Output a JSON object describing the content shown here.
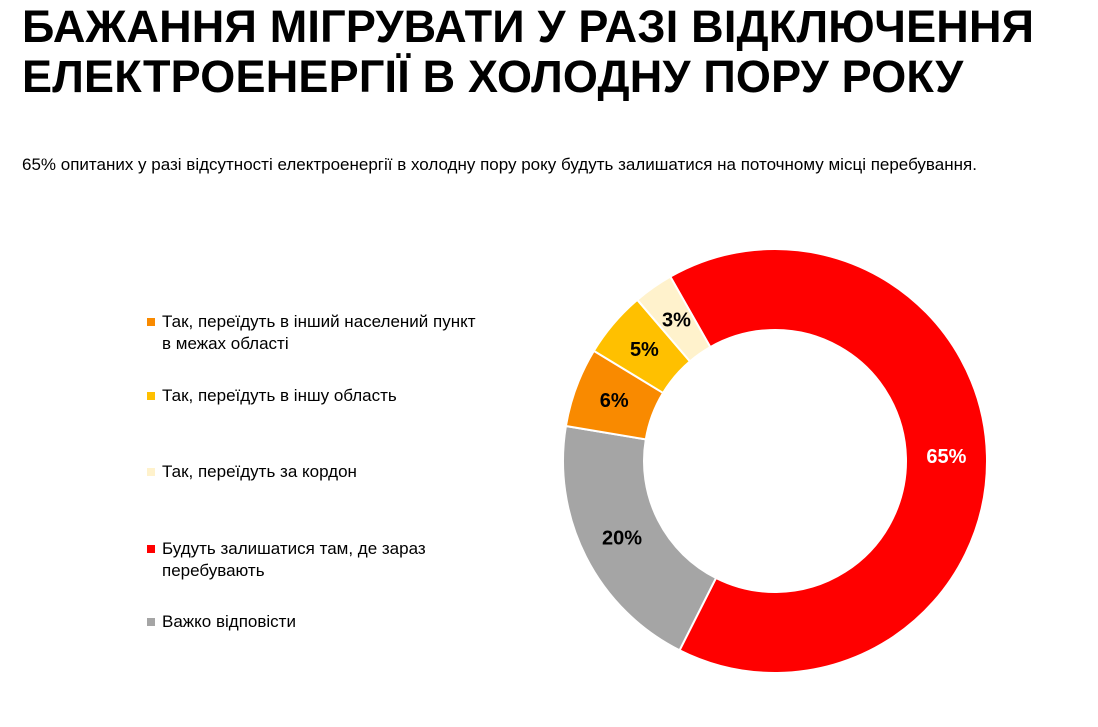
{
  "title_lines": [
    "БАЖАННЯ МІГРУВАТИ У РАЗІ ВІДКЛЮЧЕННЯ",
    "ЕЛЕКТРОЕНЕРГІЇ В ХОЛОДНУ ПОРУ РОКУ"
  ],
  "subtitle": "65% опитаних у разі відсутності електроенергії в холодну пору року будуть залишатися на поточному місці перебування.",
  "chart_data": {
    "type": "pie",
    "donut": true,
    "slices": [
      {
        "label": "Так, переїдуть в інший населений пункт в межах області",
        "value": 6,
        "display": "6%",
        "color": "#F98A00",
        "label_color": "#000000"
      },
      {
        "label": "Так, переїдуть в іншу область",
        "value": 5,
        "display": "5%",
        "color": "#FFC000",
        "label_color": "#000000"
      },
      {
        "label": "Так, переїдуть за кордон",
        "value": 3,
        "display": "3%",
        "color": "#FFF2CC",
        "label_color": "#000000"
      },
      {
        "label": "Будуть залишатися там, де зараз перебувають",
        "value": 65,
        "display": "65%",
        "color": "#FF0000",
        "label_color": "#FFFFFF"
      },
      {
        "label": "Важко відповісти",
        "value": 20,
        "display": "20%",
        "color": "#A5A5A5",
        "label_color": "#000000"
      }
    ],
    "legend_placement": "left"
  }
}
